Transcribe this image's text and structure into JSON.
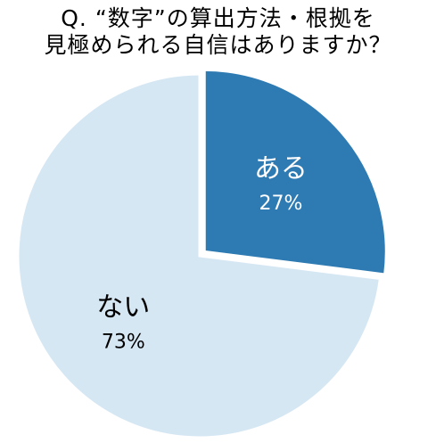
{
  "chart_data": {
    "type": "pie",
    "title_lines": [
      "Q. “数字”の算出方法・根拠を",
      "見極められる自信はありますか？"
    ],
    "slices": [
      {
        "label": "ある",
        "value": 27,
        "value_text": "27%",
        "color": "#2e7bb3",
        "text_color": "#ffffff",
        "exploded": true
      },
      {
        "label": "ない",
        "value": 73,
        "value_text": "73%",
        "color": "#d6e7f4",
        "text_color": "#000000",
        "exploded": false
      }
    ],
    "start_angle": "12 o'clock",
    "direction": "clockwise",
    "legend": "none"
  }
}
